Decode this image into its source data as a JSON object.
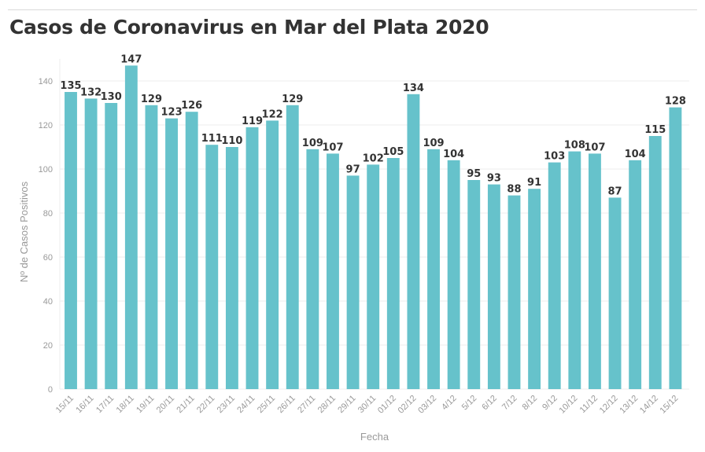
{
  "title": "Casos de Coronavirus en Mar del Plata 2020",
  "chart_data": {
    "type": "bar",
    "title": "Casos de Coronavirus en Mar del Plata 2020",
    "xlabel": "Fecha",
    "ylabel": "Nº de Casos Positivos",
    "ylim": [
      0,
      150
    ],
    "yticks": [
      0,
      20,
      40,
      60,
      80,
      100,
      120,
      140
    ],
    "grid": true,
    "color": "#66c2cb",
    "categories": [
      "15/11",
      "16/11",
      "17/11",
      "18/11",
      "19/11",
      "20/11",
      "21/11",
      "22/11",
      "23/11",
      "24/11",
      "25/11",
      "26/11",
      "27/11",
      "28/11",
      "29/11",
      "30/11",
      "01/12",
      "02/12",
      "03/12",
      "4/12",
      "5/12",
      "6/12",
      "7/12",
      "8/12",
      "9/12",
      "10/12",
      "11/12",
      "12/12",
      "13/12",
      "14/12",
      "15/12"
    ],
    "values": [
      135,
      132,
      130,
      147,
      129,
      123,
      126,
      111,
      110,
      119,
      122,
      129,
      109,
      107,
      97,
      102,
      105,
      134,
      109,
      104,
      95,
      93,
      88,
      91,
      103,
      108,
      107,
      87,
      104,
      115,
      128
    ]
  }
}
